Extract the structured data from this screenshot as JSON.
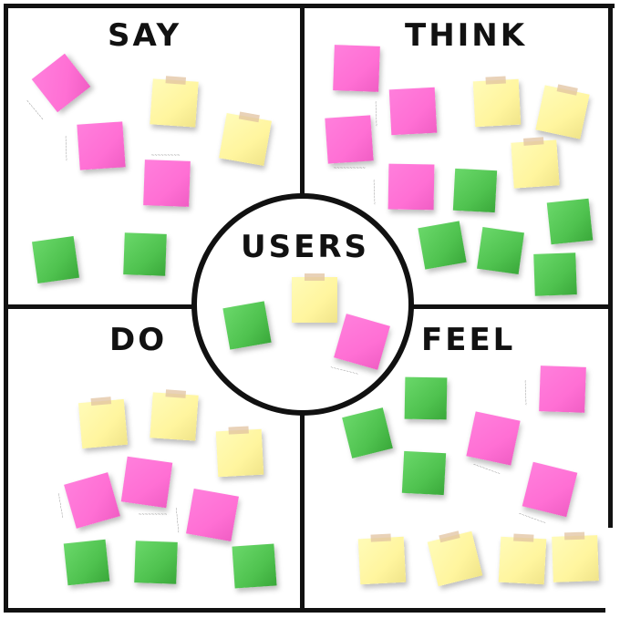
{
  "board": {
    "say_label": "SAY",
    "think_label": "THINK",
    "do_label": "DO",
    "feel_label": "FEEL",
    "users_label": "USERS"
  },
  "colors": {
    "pink": "#ff6fd4",
    "yellow": "#fff59e",
    "green": "#4fc24f",
    "lines": "#111111"
  },
  "notes": {
    "say": [
      "pink",
      "yellow",
      "pink",
      "yellow",
      "pink",
      "green",
      "green"
    ],
    "think": [
      "pink",
      "pink",
      "yellow",
      "yellow",
      "pink",
      "yellow",
      "pink",
      "green",
      "green",
      "green",
      "green",
      "green"
    ],
    "do": [
      "yellow",
      "yellow",
      "yellow",
      "pink",
      "pink",
      "pink",
      "green",
      "green",
      "green"
    ],
    "feel": [
      "pink",
      "green",
      "green",
      "pink",
      "green",
      "pink",
      "yellow",
      "yellow",
      "yellow",
      "yellow"
    ],
    "users": [
      "green",
      "yellow",
      "pink"
    ]
  }
}
